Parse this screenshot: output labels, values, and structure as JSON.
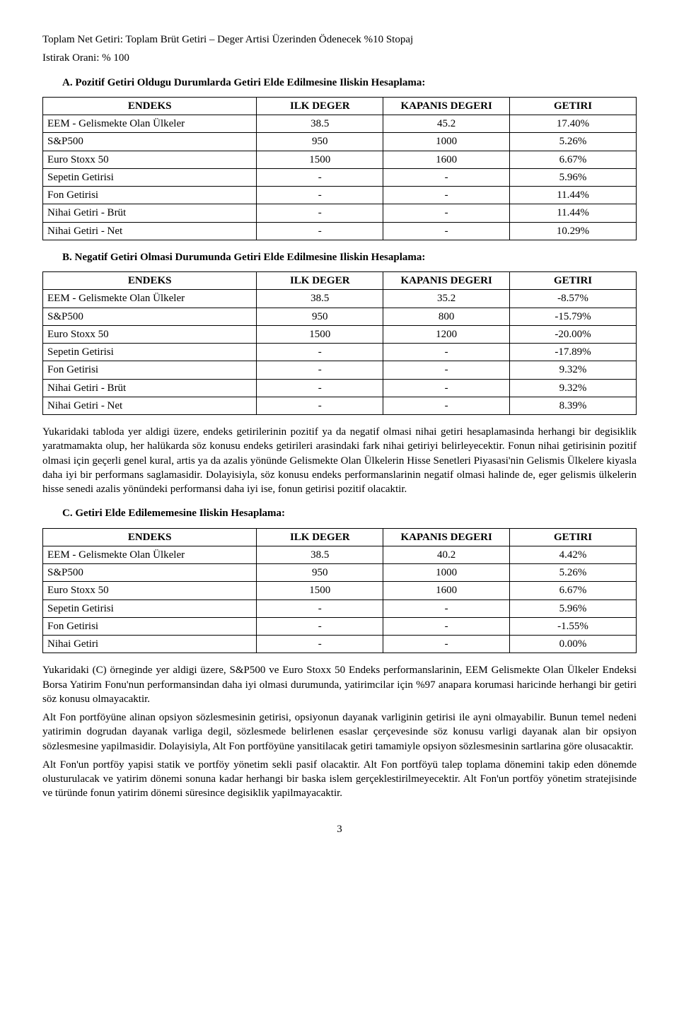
{
  "intro": {
    "line1": "Toplam Net Getiri: Toplam Brüt Getiri – Deger Artisi Üzerinden Ödenecek %10 Stopaj",
    "line2": "Istirak Orani: % 100"
  },
  "sectionA": {
    "heading": "A.  Pozitif Getiri Oldugu Durumlarda Getiri Elde Edilmesine Iliskin Hesaplama:",
    "headers": [
      "ENDEKS",
      "ILK DEGER",
      "KAPANIS DEGERI",
      "GETIRI"
    ],
    "rows": [
      [
        "EEM - Gelismekte Olan Ülkeler",
        "38.5",
        "45.2",
        "17.40%"
      ],
      [
        "S&P500",
        "950",
        "1000",
        "5.26%"
      ],
      [
        "Euro Stoxx 50",
        "1500",
        "1600",
        "6.67%"
      ],
      [
        "Sepetin Getirisi",
        "-",
        "-",
        "5.96%"
      ],
      [
        "Fon Getirisi",
        "-",
        "-",
        "11.44%"
      ],
      [
        "Nihai Getiri - Brüt",
        "-",
        "-",
        "11.44%"
      ],
      [
        "Nihai Getiri - Net",
        "-",
        "-",
        "10.29%"
      ]
    ]
  },
  "sectionB": {
    "heading": "B.  Negatif Getiri Olmasi Durumunda Getiri Elde Edilmesine Iliskin Hesaplama:",
    "headers": [
      "ENDEKS",
      "ILK DEGER",
      "KAPANIS DEGERI",
      "GETIRI"
    ],
    "rows": [
      [
        "EEM - Gelismekte Olan Ülkeler",
        "38.5",
        "35.2",
        "-8.57%"
      ],
      [
        "S&P500",
        "950",
        "800",
        "-15.79%"
      ],
      [
        "Euro Stoxx 50",
        "1500",
        "1200",
        "-20.00%"
      ],
      [
        "Sepetin Getirisi",
        "-",
        "-",
        "-17.89%"
      ],
      [
        "Fon Getirisi",
        "-",
        "-",
        "9.32%"
      ],
      [
        "Nihai Getiri - Brüt",
        "-",
        "-",
        "9.32%"
      ],
      [
        "Nihai Getiri - Net",
        "-",
        "-",
        "8.39%"
      ]
    ]
  },
  "paraAfterB": "Yukaridaki tabloda yer aldigi üzere, endeks getirilerinin pozitif ya da negatif olmasi nihai getiri hesaplamasinda herhangi bir degisiklik yaratmamakta olup, her halükarda söz konusu endeks getirileri arasindaki fark nihai getiriyi belirleyecektir. Fonun nihai getirisinin pozitif olmasi için geçerli genel kural, artis ya da azalis yönünde Gelismekte Olan Ülkelerin Hisse Senetleri Piyasasi'nin Gelismis Ülkelere kiyasla daha iyi bir performans saglamasidir. Dolayisiyla, söz konusu endeks performanslarinin negatif olmasi halinde de, eger gelismis ülkelerin hisse senedi azalis yönündeki performansi daha iyi ise, fonun getirisi pozitif olacaktir.",
  "sectionC": {
    "heading": "C.  Getiri Elde Edilememesine Iliskin Hesaplama:",
    "headers": [
      "ENDEKS",
      "ILK DEGER",
      "KAPANIS DEGERI",
      "GETIRI"
    ],
    "rows": [
      [
        "EEM - Gelismekte Olan Ülkeler",
        "38.5",
        "40.2",
        "4.42%"
      ],
      [
        "S&P500",
        "950",
        "1000",
        "5.26%"
      ],
      [
        "Euro Stoxx 50",
        "1500",
        "1600",
        "6.67%"
      ],
      [
        "Sepetin Getirisi",
        "-",
        "-",
        "5.96%"
      ],
      [
        "Fon Getirisi",
        "-",
        "-",
        "-1.55%"
      ],
      [
        "Nihai Getiri",
        "-",
        "-",
        "0.00%"
      ]
    ]
  },
  "paraAfterC1": "Yukaridaki (C) örneginde yer aldigi üzere, S&P500 ve Euro Stoxx 50 Endeks performanslarinin, EEM Gelismekte Olan Ülkeler Endeksi Borsa Yatirim Fonu'nun performansindan daha iyi olmasi durumunda, yatirimcilar için %97 anapara korumasi haricinde herhangi bir getiri söz konusu olmayacaktir.",
  "paraAfterC2": "Alt Fon portföyüne alinan opsiyon sözlesmesinin getirisi, opsiyonun dayanak varliginin getirisi ile ayni olmayabilir. Bunun temel nedeni yatirimin dogrudan dayanak varliga degil, sözlesmede belirlenen esaslar çerçevesinde söz konusu varligi dayanak alan bir opsiyon sözlesmesine yapilmasidir. Dolayisiyla, Alt Fon portföyüne yansitilacak getiri tamamiyle opsiyon sözlesmesinin sartlarina göre olusacaktir.",
  "paraAfterC3": "Alt Fon'un portföy yapisi statik ve portföy yönetim sekli pasif olacaktir. Alt Fon portföyü talep toplama dönemini takip eden dönemde olusturulacak ve yatirim dönemi sonuna kadar herhangi bir baska islem gerçeklestirilmeyecektir. Alt Fon'un portföy yönetim stratejisinde ve türünde fonun yatirim dönemi süresince degisiklik yapilmayacaktir.",
  "pageNumber": "3",
  "tableStyle": {
    "col1_width": "36%",
    "col_other_width": "21.3%"
  }
}
